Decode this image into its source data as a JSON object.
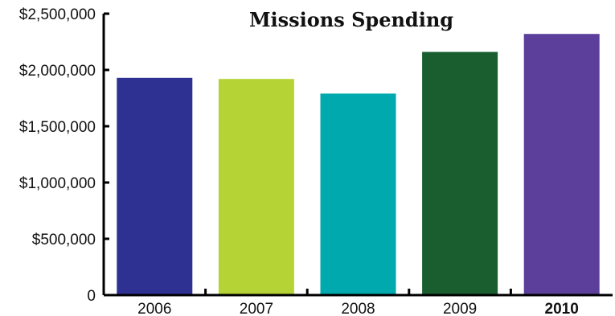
{
  "chart_data": {
    "type": "bar",
    "title": "Missions Spending",
    "xlabel": "",
    "ylabel": "",
    "categories": [
      "2006",
      "2007",
      "2008",
      "2009",
      "2010"
    ],
    "values": [
      1930000,
      1920000,
      1790000,
      2160000,
      2320000
    ],
    "y_tick_labels": [
      "0",
      "$500,000",
      "$1,000,000",
      "$1,500,000",
      "$2,000,000",
      "$2,500,000"
    ],
    "y_ticks": [
      0,
      500000,
      1000000,
      1500000,
      2000000,
      2500000
    ],
    "ylim": [
      0,
      2500000
    ],
    "bar_colors": [
      "#2e3192",
      "#b5d334",
      "#00a9ad",
      "#1a5e30",
      "#5b3f9b"
    ],
    "axis_color": "#000000",
    "emphasized_category": "2010",
    "grid": false,
    "legend": "none"
  }
}
